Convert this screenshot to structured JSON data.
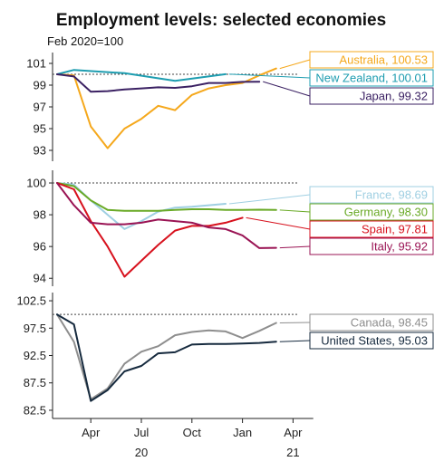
{
  "title": "Employment levels: selected economies",
  "subtitle": "Feb 2020=100",
  "x_ticks": [
    {
      "label": "Apr",
      "x": 2
    },
    {
      "label": "Jul",
      "x": 5
    },
    {
      "label": "Oct",
      "x": 8
    },
    {
      "label": "Jan",
      "x": 11
    },
    {
      "label": "Apr",
      "x": 14
    }
  ],
  "x_years": [
    {
      "label": "20",
      "x": 5
    },
    {
      "label": "21",
      "x": 14
    }
  ],
  "chart_data": [
    {
      "type": "line",
      "x_months": [
        0,
        1,
        2,
        3,
        4,
        5,
        6,
        7,
        8,
        9,
        10,
        11,
        12,
        13
      ],
      "ylim": [
        92,
        102
      ],
      "yticks": [
        93,
        95,
        97,
        99,
        101
      ],
      "reference_line": 100,
      "series": [
        {
          "name": "Australia",
          "label": "Australia, 100.53",
          "color": "#f5a81c",
          "x": [
            0,
            1,
            2,
            3,
            4,
            5,
            6,
            7,
            8,
            9,
            10,
            11,
            12,
            13
          ],
          "values": [
            100,
            99.9,
            95.2,
            93.2,
            95,
            95.9,
            97.1,
            96.7,
            98.1,
            98.7,
            99,
            99.2,
            99.9,
            100.53
          ]
        },
        {
          "name": "New Zealand",
          "label": "New Zealand, 100.01",
          "color": "#1e9db0",
          "x": [
            0,
            1,
            4,
            7,
            10
          ],
          "values": [
            100,
            100.4,
            100.1,
            99.4,
            100.01
          ]
        },
        {
          "name": "Japan",
          "label": "Japan, 99.32",
          "color": "#3b2163",
          "x": [
            0,
            1,
            2,
            3,
            4,
            5,
            6,
            7,
            8,
            9,
            10,
            11,
            12
          ],
          "values": [
            100,
            99.8,
            98.4,
            98.45,
            98.6,
            98.7,
            98.8,
            98.75,
            98.9,
            99.2,
            99.2,
            99.3,
            99.32
          ]
        }
      ]
    },
    {
      "type": "line",
      "x_months": [
        0,
        1,
        2,
        3,
        4,
        5,
        6,
        7,
        8,
        9,
        10,
        11,
        12,
        13
      ],
      "ylim": [
        93.5,
        100.8
      ],
      "yticks": [
        94,
        96,
        98,
        100
      ],
      "reference_line": 100,
      "series": [
        {
          "name": "France",
          "label": "France, 98.69",
          "color": "#9fcfe2",
          "x": [
            0,
            1,
            2,
            3,
            4,
            5,
            6,
            7,
            8,
            9,
            10
          ],
          "values": [
            100,
            99.9,
            98.9,
            98,
            97.1,
            97.6,
            98.2,
            98.45,
            98.5,
            98.6,
            98.69
          ]
        },
        {
          "name": "Germany",
          "label": "Germany, 98.30",
          "color": "#6aaa27",
          "x": [
            0,
            1,
            2,
            3,
            4,
            5,
            6,
            7,
            8,
            9,
            10,
            11,
            12,
            13
          ],
          "values": [
            100,
            99.8,
            98.9,
            98.3,
            98.25,
            98.25,
            98.25,
            98.3,
            98.35,
            98.35,
            98.3,
            98.3,
            98.32,
            98.3
          ]
        },
        {
          "name": "Spain",
          "label": "Spain, 97.81",
          "color": "#d7111d",
          "x": [
            0,
            1,
            2,
            3,
            4,
            5,
            6,
            7,
            8,
            9,
            10,
            11
          ],
          "values": [
            100,
            99.6,
            97.6,
            96,
            94.1,
            95.1,
            96.1,
            97,
            97.3,
            97.3,
            97.5,
            97.81
          ]
        },
        {
          "name": "Italy",
          "label": "Italy, 95.92",
          "color": "#9a1454",
          "x": [
            0,
            1,
            2,
            3,
            4,
            5,
            6,
            7,
            8,
            9,
            10,
            11,
            12,
            13
          ],
          "values": [
            100,
            98.6,
            97.5,
            97.4,
            97.4,
            97.5,
            97.7,
            97.6,
            97.5,
            97.2,
            97.1,
            96.7,
            95.9,
            95.92
          ]
        }
      ]
    },
    {
      "type": "line",
      "x_months": [
        0,
        1,
        2,
        3,
        4,
        5,
        6,
        7,
        8,
        9,
        10,
        11,
        12,
        13
      ],
      "ylim": [
        81,
        104
      ],
      "yticks": [
        82.5,
        87.5,
        92.5,
        97.5,
        102.5
      ],
      "reference_line": 100,
      "series": [
        {
          "name": "Canada",
          "label": "Canada, 98.45",
          "color": "#8e8e8e",
          "x": [
            0,
            1,
            2,
            3,
            4,
            5,
            6,
            7,
            8,
            9,
            10,
            11,
            12,
            13
          ],
          "values": [
            100,
            95,
            84.5,
            86.5,
            91,
            93.2,
            94.2,
            96.2,
            96.8,
            97.1,
            96.9,
            95.7,
            97,
            98.45
          ]
        },
        {
          "name": "United States",
          "label": "United States, 95.03",
          "color": "#162a3e",
          "x": [
            0,
            1,
            2,
            3,
            4,
            5,
            6,
            7,
            8,
            9,
            10,
            11,
            12,
            13
          ],
          "values": [
            100,
            98.2,
            84.2,
            86.2,
            89.6,
            90.6,
            92.9,
            93.1,
            94.5,
            94.6,
            94.6,
            94.7,
            94.8,
            95.03
          ]
        }
      ]
    }
  ]
}
